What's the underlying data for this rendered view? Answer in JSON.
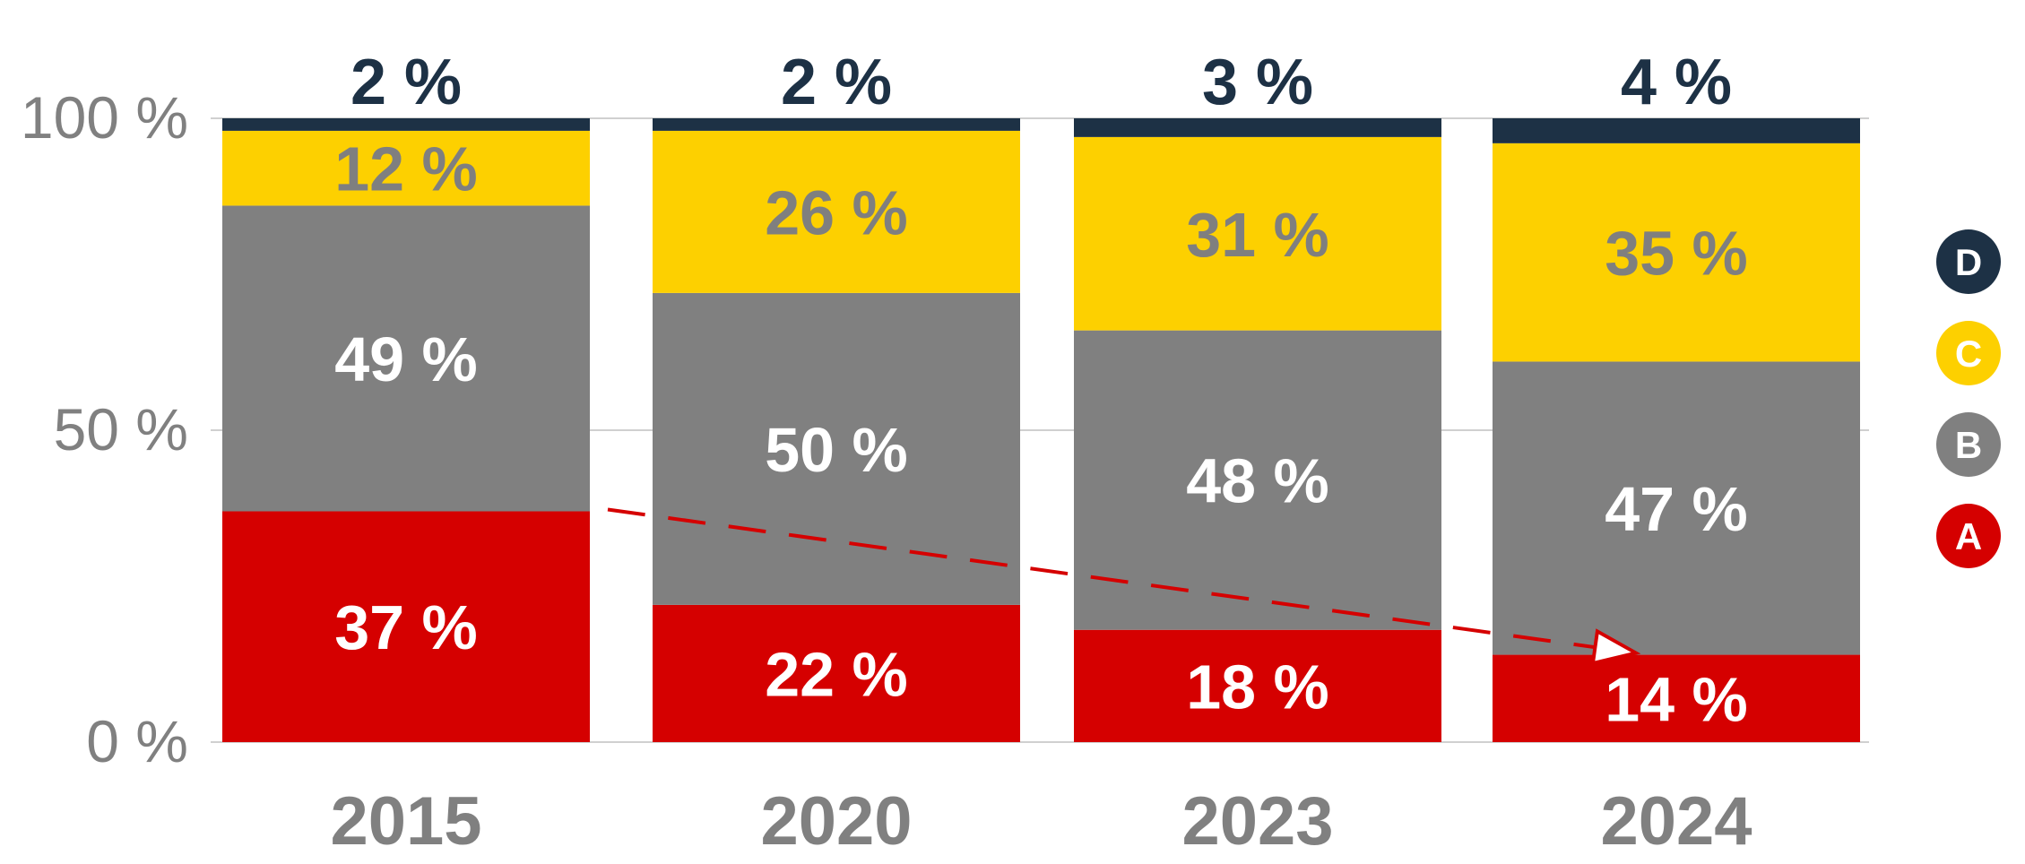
{
  "chart_data": {
    "type": "bar",
    "stacked": true,
    "categories": [
      "2015",
      "2020",
      "2023",
      "2024"
    ],
    "series": [
      {
        "name": "A",
        "color": "#d50000",
        "values": [
          37,
          22,
          18,
          14
        ],
        "labels": [
          "37 %",
          "22 %",
          "18 %",
          "14 %"
        ],
        "label_color": "#ffffff"
      },
      {
        "name": "B",
        "color": "#808080",
        "values": [
          49,
          50,
          48,
          47
        ],
        "labels": [
          "49 %",
          "50 %",
          "48 %",
          "47 %"
        ],
        "label_color": "#ffffff"
      },
      {
        "name": "C",
        "color": "#fdd000",
        "values": [
          12,
          26,
          31,
          35
        ],
        "labels": [
          "12 %",
          "26 %",
          "31 %",
          "35 %"
        ],
        "label_color": "#7f7f7f"
      },
      {
        "name": "D",
        "color": "#1d3145",
        "values": [
          2,
          2,
          3,
          4
        ],
        "labels": [
          "2 %",
          "2 %",
          "3 %",
          "4 %"
        ],
        "label_color": "#1d3145"
      }
    ],
    "yticks": [
      {
        "value": 0,
        "label": "0 %"
      },
      {
        "value": 50,
        "label": "50 %"
      },
      {
        "value": 100,
        "label": "100 %"
      }
    ],
    "ylim": [
      0,
      100
    ],
    "grid": true,
    "legend_position": "right",
    "trend_arrow": {
      "from_category": "2015",
      "to_category": "2024",
      "series": "A",
      "color": "#d50000",
      "style": "dashed"
    }
  }
}
